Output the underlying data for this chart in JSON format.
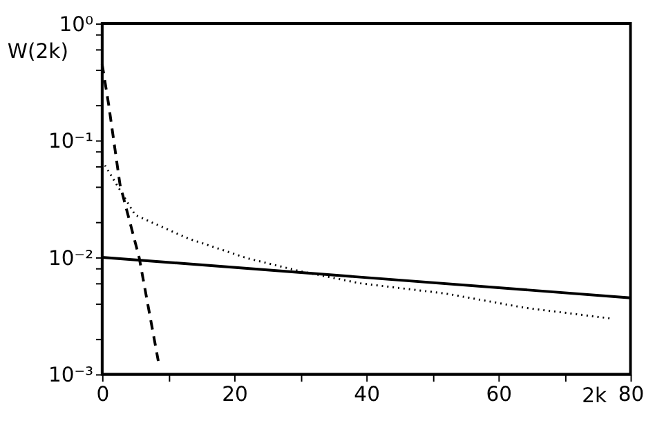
{
  "chart_data": {
    "type": "line",
    "xlabel": "2k",
    "ylabel": "W(2k)",
    "log": "y",
    "xlim": [
      0,
      80
    ],
    "xticks": [
      0,
      {
        "value": 10,
        "label": null
      },
      20,
      {
        "value": 30,
        "label": null
      },
      40,
      {
        "value": 50,
        "label": null
      },
      60,
      {
        "value": 70,
        "label": null
      },
      80
    ],
    "ylim": [
      0.001,
      1
    ],
    "yticks": [
      {
        "value": 0.001,
        "label": "10⁻³"
      },
      {
        "value": 0.002,
        "label": null
      },
      {
        "value": 0.004,
        "label": null
      },
      {
        "value": 0.006,
        "label": null
      },
      {
        "value": 0.008,
        "label": null
      },
      {
        "value": 0.01,
        "label": "10⁻²"
      },
      {
        "value": 0.02,
        "label": null
      },
      {
        "value": 0.04,
        "label": null
      },
      {
        "value": 0.06,
        "label": null
      },
      {
        "value": 0.08,
        "label": null
      },
      {
        "value": 0.1,
        "label": "10⁻¹"
      },
      {
        "value": 0.2,
        "label": null
      },
      {
        "value": 0.4,
        "label": null
      },
      {
        "value": 0.6,
        "label": null
      },
      {
        "value": 0.8,
        "label": null
      },
      {
        "value": 1,
        "label": "10⁰"
      }
    ],
    "series": [
      {
        "color": "#000000",
        "line_style": "solid",
        "x": [
          0,
          80
        ],
        "values": [
          0.01,
          0.0045
        ]
      },
      {
        "color": "#000000",
        "line_style": "dotted",
        "x": [
          0,
          5,
          13,
          22,
          30,
          39,
          52,
          64,
          77
        ],
        "values": [
          0.067,
          0.023,
          0.0145,
          0.0098,
          0.0076,
          0.006,
          0.0049,
          0.0037,
          0.003
        ]
      },
      {
        "color": "#000000",
        "line_style": "dashed",
        "x": [
          0,
          1,
          2.7,
          5.6,
          8.5
        ],
        "values": [
          0.45,
          0.2,
          0.042,
          0.01,
          0.0013
        ]
      }
    ]
  }
}
